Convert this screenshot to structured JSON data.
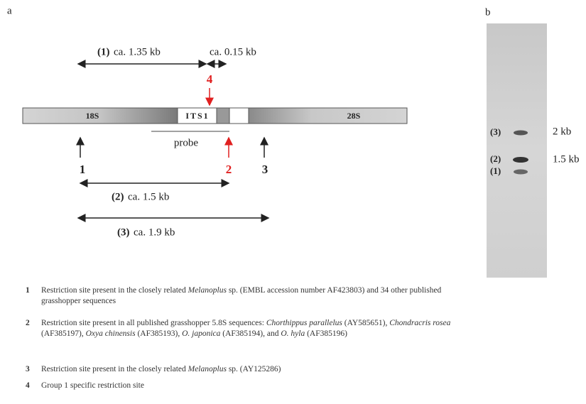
{
  "panel_a": {
    "label": "a",
    "regions": [
      "18S",
      "ITS1",
      "28S"
    ],
    "probe": "probe",
    "sites": [
      "1",
      "2",
      "3",
      "4"
    ],
    "fragments": [
      {
        "name": "(1)",
        "size": "ca. 1.35 kb"
      },
      {
        "name": "",
        "size": "ca. 0.15 kb"
      },
      {
        "name": "(2)",
        "size": "ca. 1.5 kb"
      },
      {
        "name": "(3)",
        "size": "ca. 1.9 kb"
      }
    ]
  },
  "panel_b": {
    "label": "b",
    "bands": [
      "(3)",
      "(2)",
      "(1)"
    ],
    "markers": [
      "2 kb",
      "1.5 kb"
    ]
  },
  "notes": [
    {
      "number": "1",
      "segments": [
        "Restriction site present in the closely related ",
        "Melanoplus",
        " sp. (EMBL accession number AF423803) and 34 other published grasshopper sequences"
      ]
    },
    {
      "number": "2",
      "segments": [
        "Restriction site present in all published grasshopper 5.8S sequences: ",
        "Chorthippus parallelus",
        " (AY585651), ",
        "Chondracris rosea",
        " (AF385197), ",
        "Oxya chinensis",
        " (AF385193), ",
        "O. japonica",
        " (AF385194), and ",
        "O. hyla",
        " (AF385196)"
      ]
    },
    {
      "number": "3",
      "segments": [
        "Restriction site present in the closely related ",
        "Melanoplus",
        " sp. (AY125286)"
      ]
    },
    {
      "number": "4",
      "segments": [
        "Group 1 specific restriction site"
      ]
    }
  ]
}
